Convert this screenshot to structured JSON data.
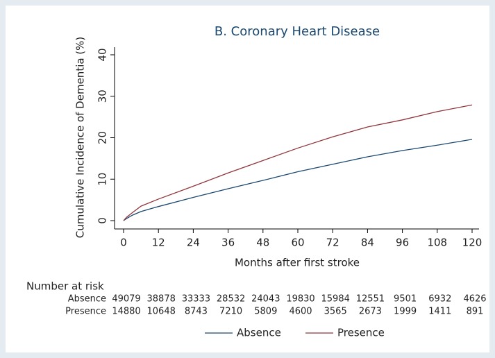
{
  "chart_data": {
    "type": "line",
    "title": "B. Coronary Heart Disease",
    "x_label": "Months after first stroke",
    "y_label": "Cumulative Incidence of Dementia (%)",
    "x": [
      0,
      1,
      3,
      6,
      12,
      24,
      36,
      48,
      60,
      72,
      84,
      96,
      108,
      120
    ],
    "series": [
      {
        "name": "Absence",
        "color": "#1a476f",
        "values": [
          0,
          0.5,
          1.3,
          2.2,
          3.4,
          5.6,
          7.7,
          9.7,
          11.8,
          13.6,
          15.4,
          16.9,
          18.2,
          19.6
        ]
      },
      {
        "name": "Presence",
        "color": "#90353b",
        "values": [
          0,
          0.8,
          1.9,
          3.5,
          5.2,
          8.3,
          11.5,
          14.5,
          17.5,
          20.2,
          22.6,
          24.3,
          26.3,
          27.9
        ]
      }
    ],
    "xlim": [
      0,
      120
    ],
    "xticks": [
      0,
      12,
      24,
      36,
      48,
      60,
      72,
      84,
      96,
      108,
      120
    ],
    "ylim": [
      0,
      40
    ],
    "yticks": [
      0,
      10,
      20,
      30,
      40
    ],
    "grid": false,
    "risk_table": {
      "title": "Number at risk",
      "rows": [
        {
          "name": "Absence",
          "values": [
            49079,
            38878,
            33333,
            28532,
            24043,
            19830,
            15984,
            12551,
            9501,
            6932,
            4626
          ]
        },
        {
          "name": "Presence",
          "values": [
            14880,
            10648,
            8743,
            7210,
            5809,
            4600,
            3565,
            2673,
            1999,
            1411,
            891
          ]
        }
      ]
    }
  }
}
